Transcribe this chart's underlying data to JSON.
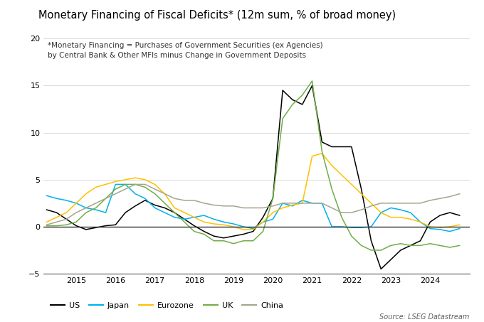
{
  "title": "Monetary Financing of Fiscal Deficits* (12m sum, % of broad money)",
  "subtitle_line1": "*Monetary Financing = Purchases of Government Securities (ex Agencies)",
  "subtitle_line2": "by Central Bank & Other MFIs minus Change in Government Deposits",
  "source": "Source: LSEG Datastream",
  "ylim": [
    -5,
    20
  ],
  "yticks": [
    -5,
    0,
    5,
    10,
    15,
    20
  ],
  "xlim": [
    2014.17,
    2025.0
  ],
  "xticks": [
    2015,
    2016,
    2017,
    2018,
    2019,
    2020,
    2021,
    2022,
    2023,
    2024
  ],
  "series": {
    "US": {
      "color": "#000000",
      "data": [
        [
          2014.25,
          1.8
        ],
        [
          2014.5,
          1.5
        ],
        [
          2014.75,
          0.8
        ],
        [
          2015.0,
          0.1
        ],
        [
          2015.25,
          -0.3
        ],
        [
          2015.5,
          -0.1
        ],
        [
          2015.75,
          0.1
        ],
        [
          2016.0,
          0.2
        ],
        [
          2016.25,
          1.5
        ],
        [
          2016.5,
          2.2
        ],
        [
          2016.75,
          2.8
        ],
        [
          2017.0,
          2.3
        ],
        [
          2017.25,
          2.0
        ],
        [
          2017.5,
          1.5
        ],
        [
          2017.75,
          0.8
        ],
        [
          2018.0,
          0.1
        ],
        [
          2018.25,
          -0.5
        ],
        [
          2018.5,
          -1.0
        ],
        [
          2018.75,
          -1.2
        ],
        [
          2019.0,
          -1.0
        ],
        [
          2019.25,
          -0.8
        ],
        [
          2019.5,
          -0.5
        ],
        [
          2019.75,
          1.0
        ],
        [
          2020.0,
          3.0
        ],
        [
          2020.25,
          14.5
        ],
        [
          2020.5,
          13.5
        ],
        [
          2020.75,
          13.0
        ],
        [
          2021.0,
          15.0
        ],
        [
          2021.25,
          9.0
        ],
        [
          2021.5,
          8.5
        ],
        [
          2021.75,
          8.5
        ],
        [
          2022.0,
          8.5
        ],
        [
          2022.25,
          4.0
        ],
        [
          2022.5,
          -1.5
        ],
        [
          2022.75,
          -4.5
        ],
        [
          2023.0,
          -3.5
        ],
        [
          2023.25,
          -2.5
        ],
        [
          2023.5,
          -2.0
        ],
        [
          2023.75,
          -1.5
        ],
        [
          2024.0,
          0.5
        ],
        [
          2024.25,
          1.2
        ],
        [
          2024.5,
          1.5
        ],
        [
          2024.75,
          1.2
        ]
      ]
    },
    "Japan": {
      "color": "#00B0F0",
      "data": [
        [
          2014.25,
          3.3
        ],
        [
          2014.5,
          3.0
        ],
        [
          2014.75,
          2.8
        ],
        [
          2015.0,
          2.5
        ],
        [
          2015.25,
          2.0
        ],
        [
          2015.5,
          1.8
        ],
        [
          2015.75,
          1.5
        ],
        [
          2016.0,
          4.5
        ],
        [
          2016.25,
          4.5
        ],
        [
          2016.5,
          3.5
        ],
        [
          2016.75,
          3.0
        ],
        [
          2017.0,
          2.0
        ],
        [
          2017.25,
          1.5
        ],
        [
          2017.5,
          1.0
        ],
        [
          2017.75,
          0.8
        ],
        [
          2018.0,
          1.0
        ],
        [
          2018.25,
          1.2
        ],
        [
          2018.5,
          0.8
        ],
        [
          2018.75,
          0.5
        ],
        [
          2019.0,
          0.3
        ],
        [
          2019.25,
          0.0
        ],
        [
          2019.5,
          -0.2
        ],
        [
          2019.75,
          0.5
        ],
        [
          2020.0,
          0.8
        ],
        [
          2020.25,
          2.5
        ],
        [
          2020.5,
          2.2
        ],
        [
          2020.75,
          2.8
        ],
        [
          2021.0,
          2.5
        ],
        [
          2021.25,
          2.5
        ],
        [
          2021.5,
          0.0
        ],
        [
          2021.75,
          0.0
        ],
        [
          2022.0,
          -0.1
        ],
        [
          2022.25,
          -0.1
        ],
        [
          2022.5,
          0.0
        ],
        [
          2022.75,
          1.5
        ],
        [
          2023.0,
          2.0
        ],
        [
          2023.25,
          1.8
        ],
        [
          2023.5,
          1.5
        ],
        [
          2023.75,
          0.5
        ],
        [
          2024.0,
          -0.2
        ],
        [
          2024.25,
          -0.3
        ],
        [
          2024.5,
          -0.5
        ],
        [
          2024.75,
          -0.2
        ]
      ]
    },
    "Eurozone": {
      "color": "#FFC000",
      "data": [
        [
          2014.25,
          0.5
        ],
        [
          2014.5,
          1.0
        ],
        [
          2014.75,
          1.5
        ],
        [
          2015.0,
          2.5
        ],
        [
          2015.25,
          3.5
        ],
        [
          2015.5,
          4.2
        ],
        [
          2015.75,
          4.5
        ],
        [
          2016.0,
          4.8
        ],
        [
          2016.25,
          5.0
        ],
        [
          2016.5,
          5.2
        ],
        [
          2016.75,
          5.0
        ],
        [
          2017.0,
          4.5
        ],
        [
          2017.25,
          3.5
        ],
        [
          2017.5,
          2.0
        ],
        [
          2017.75,
          1.5
        ],
        [
          2018.0,
          1.0
        ],
        [
          2018.25,
          0.5
        ],
        [
          2018.5,
          0.3
        ],
        [
          2018.75,
          0.2
        ],
        [
          2019.0,
          0.0
        ],
        [
          2019.25,
          -0.3
        ],
        [
          2019.5,
          -0.3
        ],
        [
          2019.75,
          0.5
        ],
        [
          2020.0,
          1.5
        ],
        [
          2020.25,
          2.0
        ],
        [
          2020.5,
          2.3
        ],
        [
          2020.75,
          2.5
        ],
        [
          2021.0,
          7.5
        ],
        [
          2021.25,
          7.8
        ],
        [
          2021.5,
          6.5
        ],
        [
          2021.75,
          5.5
        ],
        [
          2022.0,
          4.5
        ],
        [
          2022.25,
          3.5
        ],
        [
          2022.5,
          2.5
        ],
        [
          2022.75,
          1.5
        ],
        [
          2023.0,
          1.0
        ],
        [
          2023.25,
          1.0
        ],
        [
          2023.5,
          0.8
        ],
        [
          2023.75,
          0.5
        ],
        [
          2024.0,
          0.0
        ],
        [
          2024.25,
          -0.1
        ],
        [
          2024.5,
          0.0
        ],
        [
          2024.75,
          0.2
        ]
      ]
    },
    "UK": {
      "color": "#70AD47",
      "data": [
        [
          2014.25,
          0.1
        ],
        [
          2014.5,
          0.1
        ],
        [
          2014.75,
          0.2
        ],
        [
          2015.0,
          0.5
        ],
        [
          2015.25,
          1.5
        ],
        [
          2015.5,
          2.0
        ],
        [
          2015.75,
          3.0
        ],
        [
          2016.0,
          4.0
        ],
        [
          2016.25,
          4.5
        ],
        [
          2016.5,
          4.5
        ],
        [
          2016.75,
          4.2
        ],
        [
          2017.0,
          3.5
        ],
        [
          2017.25,
          2.5
        ],
        [
          2017.5,
          1.5
        ],
        [
          2017.75,
          0.5
        ],
        [
          2018.0,
          -0.5
        ],
        [
          2018.25,
          -0.8
        ],
        [
          2018.5,
          -1.5
        ],
        [
          2018.75,
          -1.5
        ],
        [
          2019.0,
          -1.8
        ],
        [
          2019.25,
          -1.5
        ],
        [
          2019.5,
          -1.5
        ],
        [
          2019.75,
          -0.5
        ],
        [
          2020.0,
          3.0
        ],
        [
          2020.25,
          11.5
        ],
        [
          2020.5,
          13.0
        ],
        [
          2020.75,
          14.0
        ],
        [
          2021.0,
          15.5
        ],
        [
          2021.25,
          8.0
        ],
        [
          2021.5,
          4.0
        ],
        [
          2021.75,
          1.0
        ],
        [
          2022.0,
          -1.0
        ],
        [
          2022.25,
          -2.0
        ],
        [
          2022.5,
          -2.5
        ],
        [
          2022.75,
          -2.5
        ],
        [
          2023.0,
          -2.0
        ],
        [
          2023.25,
          -1.8
        ],
        [
          2023.5,
          -2.0
        ],
        [
          2023.75,
          -2.0
        ],
        [
          2024.0,
          -1.8
        ],
        [
          2024.25,
          -2.0
        ],
        [
          2024.5,
          -2.2
        ],
        [
          2024.75,
          -2.0
        ]
      ]
    },
    "China": {
      "color": "#A5A58D",
      "data": [
        [
          2014.25,
          0.2
        ],
        [
          2014.5,
          0.5
        ],
        [
          2014.75,
          0.8
        ],
        [
          2015.0,
          1.5
        ],
        [
          2015.25,
          2.0
        ],
        [
          2015.5,
          2.5
        ],
        [
          2015.75,
          3.0
        ],
        [
          2016.0,
          3.5
        ],
        [
          2016.25,
          4.0
        ],
        [
          2016.5,
          4.5
        ],
        [
          2016.75,
          4.5
        ],
        [
          2017.0,
          4.0
        ],
        [
          2017.25,
          3.5
        ],
        [
          2017.5,
          3.0
        ],
        [
          2017.75,
          2.8
        ],
        [
          2018.0,
          2.8
        ],
        [
          2018.25,
          2.5
        ],
        [
          2018.5,
          2.3
        ],
        [
          2018.75,
          2.2
        ],
        [
          2019.0,
          2.2
        ],
        [
          2019.25,
          2.0
        ],
        [
          2019.5,
          2.0
        ],
        [
          2019.75,
          2.0
        ],
        [
          2020.0,
          2.2
        ],
        [
          2020.25,
          2.5
        ],
        [
          2020.5,
          2.5
        ],
        [
          2020.75,
          2.5
        ],
        [
          2021.0,
          2.5
        ],
        [
          2021.25,
          2.5
        ],
        [
          2021.5,
          2.0
        ],
        [
          2021.75,
          1.5
        ],
        [
          2022.0,
          1.5
        ],
        [
          2022.25,
          1.8
        ],
        [
          2022.5,
          2.2
        ],
        [
          2022.75,
          2.5
        ],
        [
          2023.0,
          2.5
        ],
        [
          2023.25,
          2.5
        ],
        [
          2023.5,
          2.5
        ],
        [
          2023.75,
          2.5
        ],
        [
          2024.0,
          2.8
        ],
        [
          2024.25,
          3.0
        ],
        [
          2024.5,
          3.2
        ],
        [
          2024.75,
          3.5
        ]
      ]
    }
  },
  "legend_order": [
    "US",
    "Japan",
    "Eurozone",
    "UK",
    "China"
  ]
}
